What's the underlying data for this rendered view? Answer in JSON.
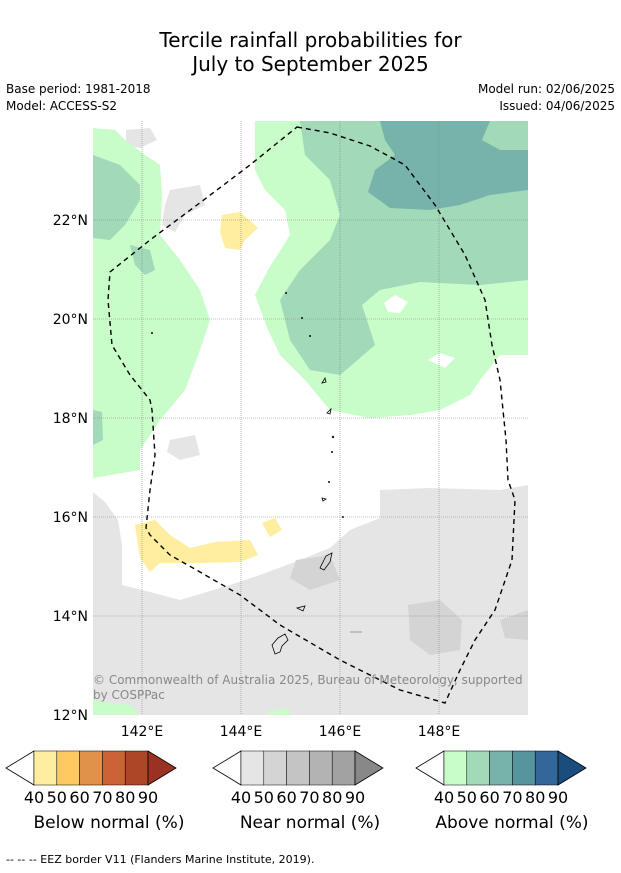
{
  "title_line1": "Tercile rainfall probabilities for",
  "title_line2": "July to September 2025",
  "meta_left": {
    "base_period": "Base period: 1981-2018",
    "model": "Model: ACCESS-S2"
  },
  "meta_right": {
    "model_run": "Model run: 02/06/2025",
    "issued": "Issued: 04/06/2025"
  },
  "map": {
    "lat_labels": [
      "22°N",
      "20°N",
      "18°N",
      "16°N",
      "14°N",
      "12°N"
    ],
    "lon_labels": [
      "142°E",
      "144°E",
      "146°E",
      "148°E"
    ],
    "copyright_line1": "© Commonwealth of Australia 2025, Bureau of Meteorology, supported",
    "copyright_line2": "by COSPPac"
  },
  "legends": [
    {
      "label": "Below normal (%)",
      "ticks": [
        "40",
        "50",
        "60",
        "70",
        "80",
        "90"
      ],
      "colors": [
        "#ffeda0",
        "#fec862",
        "#e0924a",
        "#cd6334",
        "#ad4627",
        "#9a3223"
      ]
    },
    {
      "label": "Near normal (%)",
      "ticks": [
        "40",
        "50",
        "60",
        "70",
        "80",
        "90"
      ],
      "colors": [
        "#e5e5e5",
        "#d4d4d4",
        "#c4c4c4",
        "#b3b3b3",
        "#a2a2a2",
        "#888888"
      ]
    },
    {
      "label": "Above normal (%)",
      "ticks": [
        "40",
        "50",
        "60",
        "70",
        "80",
        "90"
      ],
      "colors": [
        "#c8fcc8",
        "#a1d9b9",
        "#77b3ab",
        "#58949c",
        "#336699",
        "#1b4c7e"
      ]
    }
  ],
  "footnote": "--  --  -- EEZ border V11 (Flanders Marine Institute, 2019)."
}
